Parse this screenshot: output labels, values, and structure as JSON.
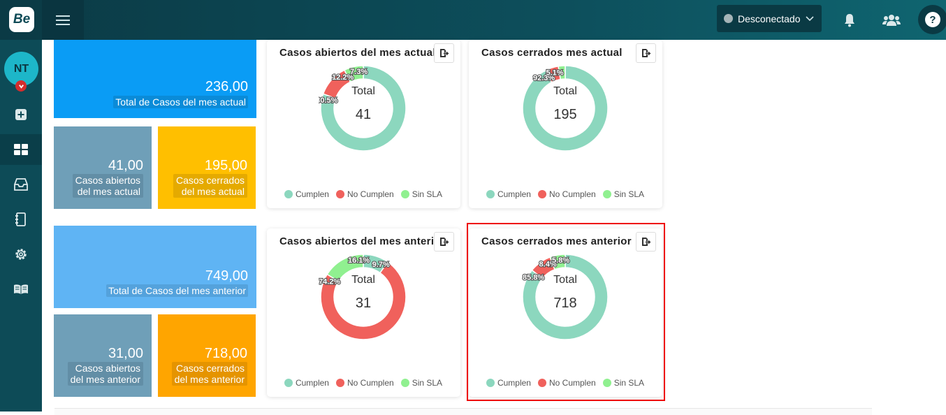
{
  "header": {
    "logo": "Be",
    "status_label": "Desconectado",
    "help_label": "?",
    "icons": [
      "menu-icon",
      "chevron-down-icon",
      "bell-icon",
      "users-icon",
      "help-icon"
    ]
  },
  "sidebar": {
    "avatar": "NT",
    "items": [
      "plus-square-icon",
      "dashboard-icon",
      "inbox-icon",
      "notebook-icon",
      "gear-icon",
      "book-open-icon"
    ]
  },
  "tiles": {
    "current_total": {
      "value": "236,00",
      "label": "Total de Casos del mes actual",
      "color": "#0a9cf5"
    },
    "current_open": {
      "value": "41,00",
      "label_l1": "Casos abiertos",
      "label_l2": "del mes actual",
      "color": "#6f9fb8"
    },
    "current_closed": {
      "value": "195,00",
      "label_l1": "Casos cerrados",
      "label_l2": "del mes actual",
      "color": "#ffbf00"
    },
    "prev_total": {
      "value": "749,00",
      "label": "Total de Casos del mes anterior",
      "color": "#5fb4f4"
    },
    "prev_open": {
      "value": "31,00",
      "label_l1": "Casos abiertos",
      "label_l2": "del mes anterior",
      "color": "#6f9fb8"
    },
    "prev_closed": {
      "value": "718,00",
      "label_l1": "Casos cerrados",
      "label_l2": "del mes anterior",
      "color": "#ffa500"
    }
  },
  "legend": {
    "cumplen": "Cumplen",
    "no_cumplen": "No Cumplen",
    "sin_sla": "Sin SLA"
  },
  "colors": {
    "cumplen": "#8cd7be",
    "no_cumplen": "#f0615c",
    "sin_sla": "#90f090"
  },
  "charts": [
    {
      "title": "Casos abiertos del mes actual",
      "total_label": "Total",
      "total": "41",
      "slices": [
        {
          "name": "Cumplen",
          "value": 80.5,
          "label": "80.5%"
        },
        {
          "name": "No Cumplen",
          "value": 12.2,
          "label": "12.2%"
        },
        {
          "name": "Sin SLA",
          "value": 7.3,
          "label": "7.3%"
        }
      ]
    },
    {
      "title": "Casos cerrados mes actual",
      "total_label": "Total",
      "total": "195",
      "slices": [
        {
          "name": "Cumplen",
          "value": 92.3,
          "label": "92.3%"
        },
        {
          "name": "No Cumplen",
          "value": 5.1,
          "label": "5.1%"
        },
        {
          "name": "Sin SLA",
          "value": 2.6,
          "label": ""
        }
      ]
    },
    {
      "title": "Casos abiertos del mes anterior",
      "total_label": "Total",
      "total": "31",
      "slices": [
        {
          "name": "Cumplen",
          "value": 9.7,
          "label": "9.7%"
        },
        {
          "name": "No Cumplen",
          "value": 74.2,
          "label": "74.2%"
        },
        {
          "name": "Sin SLA",
          "value": 16.1,
          "label": "16.1%"
        }
      ]
    },
    {
      "title": "Casos cerrados mes anterior",
      "total_label": "Total",
      "total": "718",
      "slices": [
        {
          "name": "Cumplen",
          "value": 85.8,
          "label": "85.8%"
        },
        {
          "name": "No Cumplen",
          "value": 8.4,
          "label": "8.4%"
        },
        {
          "name": "Sin SLA",
          "value": 5.8,
          "label": "5.8%"
        }
      ]
    }
  ]
}
